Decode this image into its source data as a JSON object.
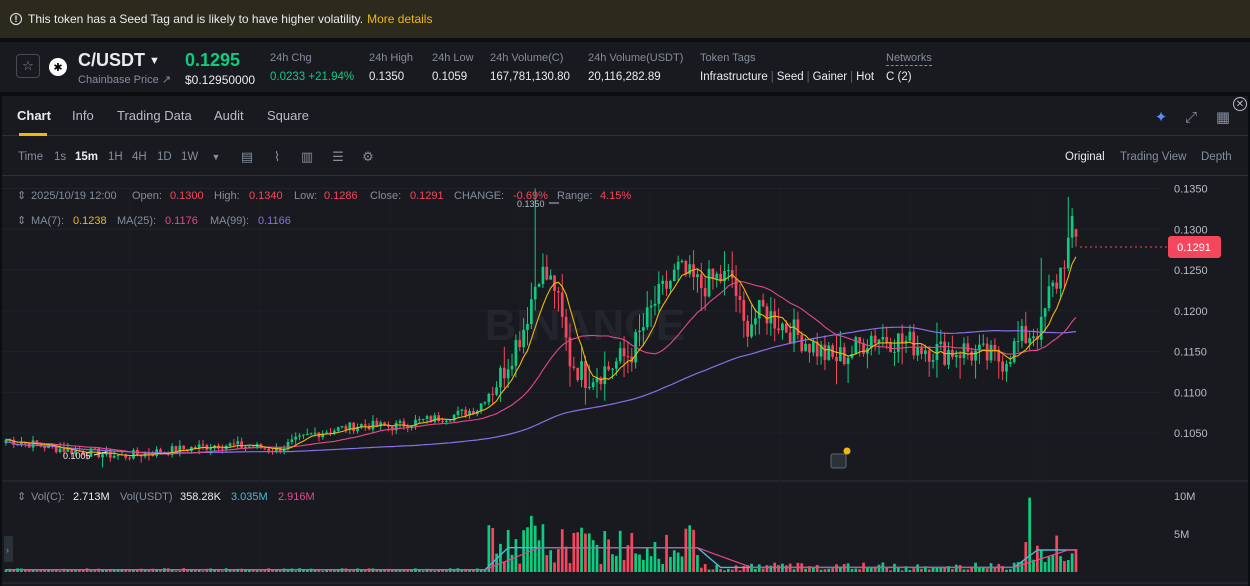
{
  "banner": {
    "text": "This token has a Seed Tag and is likely to have higher volatility.",
    "link": "More details"
  },
  "ticker": {
    "pair": "C/USDT",
    "sublabel": "Chainbase Price",
    "price": "0.1295",
    "price_usd": "$0.12950000",
    "stats": [
      {
        "label": "24h Chg",
        "value": "0.0233 +21.94%"
      },
      {
        "label": "24h High",
        "value": "0.1350"
      },
      {
        "label": "24h Low",
        "value": "0.1059"
      },
      {
        "label": "24h Volume(C)",
        "value": "167,781,130.80"
      },
      {
        "label": "24h Volume(USDT)",
        "value": "20,116,282.89"
      }
    ],
    "token_tags_label": "Token Tags",
    "token_tags": [
      "Infrastructure",
      "Seed",
      "Gainer",
      "Hot"
    ],
    "networks_label": "Networks",
    "networks_value": "C (2)"
  },
  "tabs": [
    "Chart",
    "Info",
    "Trading Data",
    "Audit",
    "Square"
  ],
  "toolbar": {
    "time_label": "Time",
    "intervals": [
      "1s",
      "15m",
      "1H",
      "4H",
      "1D",
      "1W"
    ],
    "active_interval": "15m",
    "views": [
      "Original",
      "Trading View",
      "Depth"
    ],
    "active_view": "Original"
  },
  "ohlc": {
    "date": "2025/10/19 12:00",
    "open_label": "Open:",
    "open": "0.1300",
    "high_label": "High:",
    "high": "0.1340",
    "low_label": "Low:",
    "low": "0.1286",
    "close_label": "Close:",
    "close": "0.1291",
    "change_label": "CHANGE:",
    "change": "-0.69%",
    "range_label": "Range:",
    "range": "4.15%"
  },
  "ma": {
    "ma7_label": "MA(7):",
    "ma7": "0.1238",
    "ma25_label": "MA(25):",
    "ma25": "0.1176",
    "ma99_label": "MA(99):",
    "ma99": "0.1166"
  },
  "vol": {
    "label": "Vol(C):",
    "value": "2.713M",
    "usdt_label": "Vol(USDT)",
    "usdt_value": "358.28K",
    "ma1": "3.035M",
    "ma2": "2.916M"
  },
  "watermark": "BINANCE",
  "high_marker": "0.1350",
  "low_marker": "0.1005",
  "current_price_tag": "0.1291",
  "chart_data": {
    "type": "candlestick",
    "price_axis": {
      "ticks": [
        "0.1350",
        "0.1300",
        "0.1250",
        "0.1200",
        "0.1150",
        "0.1100",
        "0.1050"
      ],
      "range": [
        0.0995,
        0.1358
      ]
    },
    "volume_axis": {
      "ticks": [
        "10M",
        "5M"
      ],
      "range": [
        0,
        10000000
      ]
    },
    "colors": {
      "up": "#0ecb81",
      "down": "#f6465d",
      "ma7": "#f0b90b",
      "ma25": "#e5488e",
      "ma99": "#8a6fe8",
      "vol_ma1": "#48bbd6",
      "vol_ma2": "#e5488e"
    }
  }
}
